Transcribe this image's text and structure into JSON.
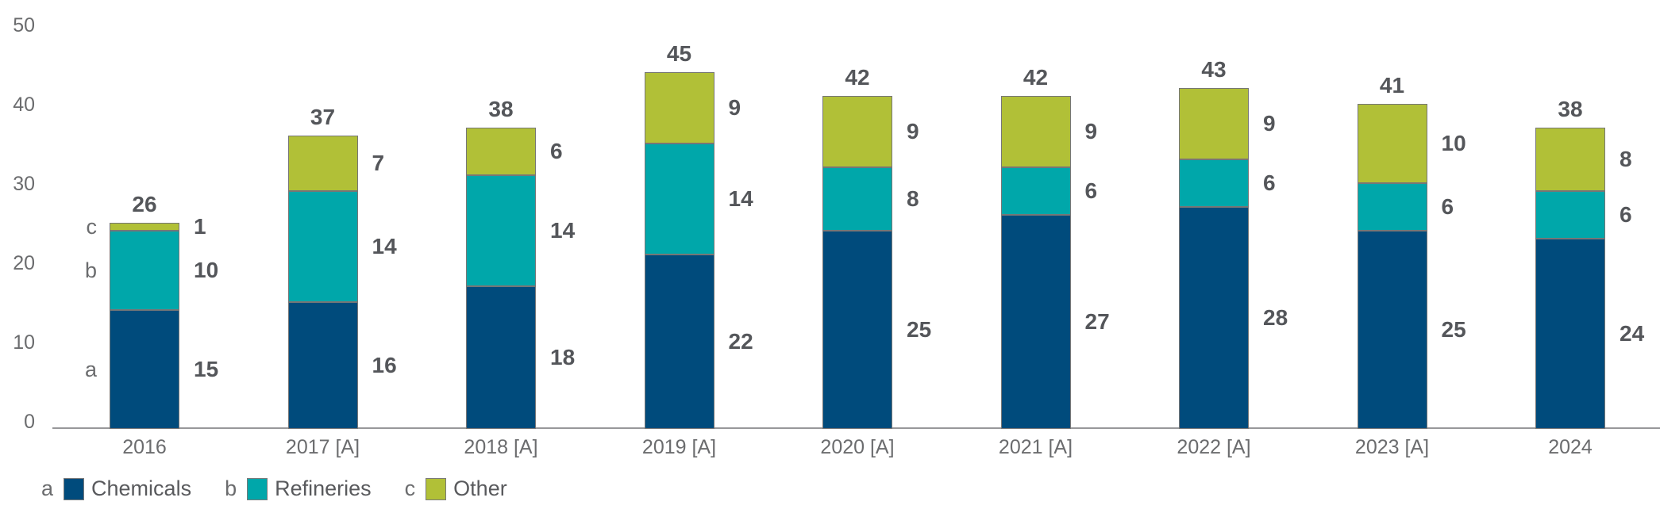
{
  "chart_data": {
    "type": "bar",
    "stacked": true,
    "title": "",
    "xlabel": "",
    "ylabel": "",
    "categories": [
      "2016",
      "2017 [A]",
      "2018 [A]",
      "2019 [A]",
      "2020 [A]",
      "2021 [A]",
      "2022 [A]",
      "2023 [A]",
      "2024"
    ],
    "series": [
      {
        "key": "a",
        "name": "Chemicals",
        "color": "#004B7C",
        "values": [
          15,
          16,
          18,
          22,
          25,
          27,
          28,
          25,
          24
        ]
      },
      {
        "key": "b",
        "name": "Refineries",
        "color": "#00A7AA",
        "values": [
          10,
          14,
          14,
          14,
          8,
          6,
          6,
          6,
          6
        ]
      },
      {
        "key": "c",
        "name": "Other",
        "color": "#B1C037",
        "values": [
          1,
          7,
          6,
          9,
          9,
          9,
          9,
          10,
          8
        ]
      }
    ],
    "totals": [
      26,
      37,
      38,
      45,
      42,
      42,
      43,
      41,
      38
    ],
    "ylim": [
      0,
      50
    ],
    "yticks": [
      0,
      10,
      20,
      30,
      40,
      50
    ],
    "grid": false,
    "legend_position": "bottom",
    "first_bar_letter_annotations": [
      "a",
      "b",
      "c"
    ]
  },
  "legend": {
    "items": [
      {
        "letter": "a",
        "label": "Chemicals",
        "color": "#004B7C"
      },
      {
        "letter": "b",
        "label": "Refineries",
        "color": "#00A7AA"
      },
      {
        "letter": "c",
        "label": "Other",
        "color": "#B1C037"
      }
    ]
  },
  "colors": {
    "chemicals": "#004B7C",
    "refineries": "#00A7AA",
    "other": "#B1C037",
    "value_text": "#54565A",
    "axis_text": "#6B6C6E",
    "axis_line": "#98989A",
    "segment_border": "#767676"
  }
}
